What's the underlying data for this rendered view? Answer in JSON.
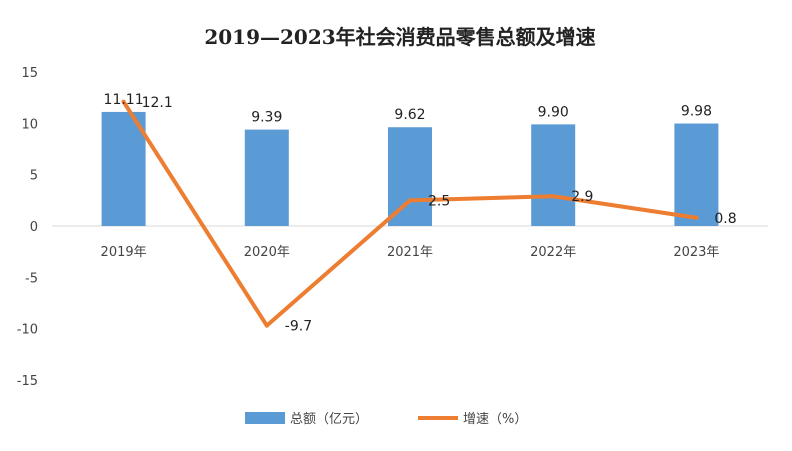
{
  "chart_data": {
    "type": "bar",
    "title": "2019—2023年社会消费品零售总额及增速",
    "categories": [
      "2019年",
      "2020年",
      "2021年",
      "2022年",
      "2023年"
    ],
    "series": [
      {
        "name": "总额（亿元）",
        "type": "bar",
        "color": "#5b9bd5",
        "values": [
          11.11,
          9.39,
          9.62,
          9.9,
          9.98
        ],
        "labels": [
          "11.11",
          "9.39",
          "9.62",
          "9.90",
          "9.98"
        ]
      },
      {
        "name": "增速（%）",
        "type": "line",
        "color": "#ed7d31",
        "values": [
          12.1,
          -9.7,
          2.5,
          2.9,
          0.8
        ],
        "labels": [
          "12.1",
          "-9.7",
          "2.5",
          "2.9",
          "0.8"
        ]
      }
    ],
    "ylim": [
      -15,
      15
    ],
    "yticks": [
      "15",
      "10",
      "5",
      "0",
      "-5",
      "-10",
      "-15"
    ],
    "grid": false,
    "legend_position": "bottom"
  }
}
